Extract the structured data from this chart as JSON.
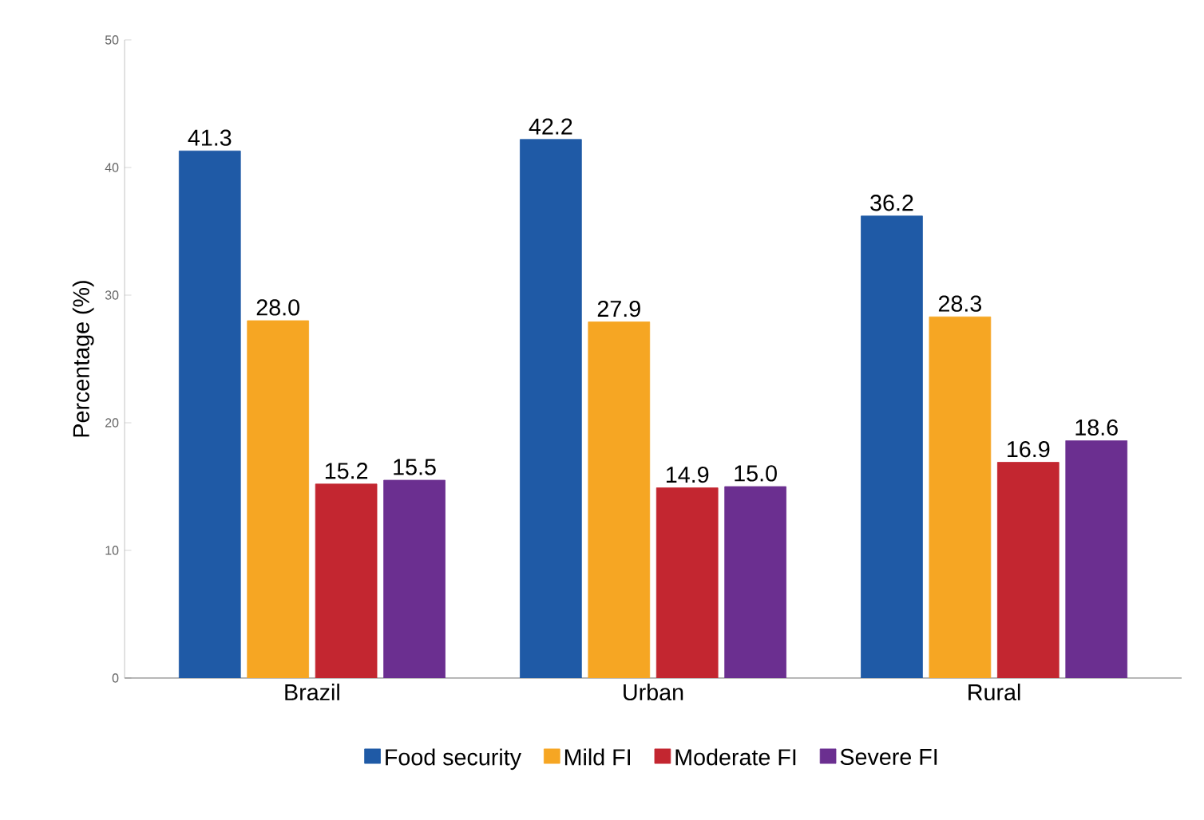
{
  "chart_data": {
    "type": "bar",
    "ylabel": "Percentage (%)",
    "categories": [
      "Brazil",
      "Urban",
      "Rural"
    ],
    "series": [
      {
        "name": "Food security",
        "color": "#1f5aa6",
        "values": [
          41.3,
          42.2,
          36.2
        ],
        "value_labels": [
          "41.3",
          "42.2",
          "36.2"
        ]
      },
      {
        "name": "Mild FI",
        "color": "#f6a623",
        "values": [
          28.0,
          27.9,
          28.3
        ],
        "value_labels": [
          "28.0",
          "27.9",
          "28.3"
        ]
      },
      {
        "name": "Moderate FI",
        "color": "#c32630",
        "values": [
          15.2,
          14.9,
          16.9
        ],
        "value_labels": [
          "15.2",
          "14.9",
          "16.9"
        ]
      },
      {
        "name": "Severe FI",
        "color": "#6b2f90",
        "values": [
          15.5,
          15.0,
          18.6
        ],
        "value_labels": [
          "15.5",
          "15.0",
          "18.6"
        ]
      }
    ],
    "ylim": [
      0,
      50
    ],
    "yticks": [
      0,
      10,
      20,
      30,
      40,
      50
    ],
    "grid": false,
    "legend": "bottom"
  }
}
